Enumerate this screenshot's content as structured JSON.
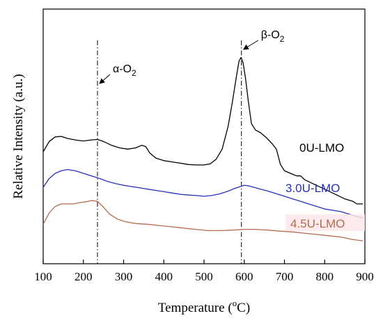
{
  "chart_data": {
    "type": "line",
    "xlabel": "Temperature (",
    "xlabel_sup": "o",
    "xlabel_end": "C)",
    "ylabel": "Relative Intensity (a.u.)",
    "xlim": [
      100,
      900
    ],
    "ylim": [
      0,
      100
    ],
    "x_ticks": [
      100,
      200,
      300,
      400,
      500,
      600,
      700,
      800,
      900
    ],
    "y_ticks_labeled": false,
    "grid": false,
    "series": [
      {
        "name": "0U-LMO",
        "color": "#000000",
        "points": [
          [
            100,
            44
          ],
          [
            115,
            48
          ],
          [
            130,
            49.8
          ],
          [
            145,
            50
          ],
          [
            160,
            49.2
          ],
          [
            180,
            48.6
          ],
          [
            200,
            48.2
          ],
          [
            220,
            48.6
          ],
          [
            235,
            48.8
          ],
          [
            250,
            48
          ],
          [
            270,
            46.5
          ],
          [
            290,
            45.5
          ],
          [
            310,
            45
          ],
          [
            330,
            45.5
          ],
          [
            345,
            46.5
          ],
          [
            355,
            46
          ],
          [
            365,
            43.5
          ],
          [
            380,
            41.5
          ],
          [
            400,
            40.5
          ],
          [
            420,
            40
          ],
          [
            440,
            39.5
          ],
          [
            460,
            39
          ],
          [
            480,
            38.8
          ],
          [
            500,
            38.8
          ],
          [
            515,
            39.2
          ],
          [
            530,
            41
          ],
          [
            545,
            45
          ],
          [
            560,
            54
          ],
          [
            570,
            63
          ],
          [
            580,
            73
          ],
          [
            587,
            79.5
          ],
          [
            592,
            81
          ],
          [
            597,
            79
          ],
          [
            603,
            73
          ],
          [
            610,
            64
          ],
          [
            618,
            55
          ],
          [
            628,
            52.5
          ],
          [
            640,
            51.5
          ],
          [
            655,
            49.5
          ],
          [
            670,
            47
          ],
          [
            680,
            45
          ],
          [
            690,
            39
          ],
          [
            700,
            36.5
          ],
          [
            715,
            35.5
          ],
          [
            730,
            34.5
          ],
          [
            740,
            34.5
          ],
          [
            750,
            33
          ],
          [
            770,
            31.5
          ],
          [
            790,
            30
          ],
          [
            810,
            28.5
          ],
          [
            830,
            27
          ],
          [
            850,
            25.5
          ],
          [
            870,
            24.5
          ],
          [
            880,
            23.5
          ],
          [
            895,
            23.5
          ]
        ]
      },
      {
        "name": "3.0U-LMO",
        "color": "#2431b8",
        "points": [
          [
            100,
            30
          ],
          [
            115,
            33.5
          ],
          [
            130,
            35.5
          ],
          [
            145,
            36.5
          ],
          [
            160,
            37
          ],
          [
            180,
            36.5
          ],
          [
            200,
            35.5
          ],
          [
            220,
            34.5
          ],
          [
            240,
            33.5
          ],
          [
            260,
            32.3
          ],
          [
            280,
            31.5
          ],
          [
            300,
            30.8
          ],
          [
            320,
            30.3
          ],
          [
            340,
            29.8
          ],
          [
            360,
            29.3
          ],
          [
            380,
            28.8
          ],
          [
            400,
            28.3
          ],
          [
            420,
            27.8
          ],
          [
            440,
            27.3
          ],
          [
            460,
            27
          ],
          [
            480,
            26.8
          ],
          [
            500,
            26.5
          ],
          [
            520,
            26.8
          ],
          [
            540,
            27.5
          ],
          [
            560,
            28.5
          ],
          [
            575,
            29.5
          ],
          [
            590,
            30.3
          ],
          [
            600,
            30.8
          ],
          [
            610,
            30.6
          ],
          [
            625,
            30
          ],
          [
            640,
            29.3
          ],
          [
            660,
            28.5
          ],
          [
            680,
            27.5
          ],
          [
            700,
            26.5
          ],
          [
            720,
            25.5
          ],
          [
            740,
            24.5
          ],
          [
            760,
            23.5
          ],
          [
            780,
            22.5
          ],
          [
            800,
            21.5
          ],
          [
            820,
            21
          ],
          [
            840,
            20.5
          ],
          [
            860,
            19.5
          ],
          [
            880,
            18.5
          ],
          [
            895,
            18
          ]
        ]
      },
      {
        "name": "4.5U-LMO",
        "color": "#b86a4d",
        "points": [
          [
            100,
            15.5
          ],
          [
            115,
            20
          ],
          [
            130,
            22.5
          ],
          [
            145,
            23.5
          ],
          [
            160,
            23.5
          ],
          [
            175,
            23.5
          ],
          [
            190,
            24
          ],
          [
            205,
            24.3
          ],
          [
            220,
            24.8
          ],
          [
            235,
            24.5
          ],
          [
            248,
            22.5
          ],
          [
            265,
            19.5
          ],
          [
            285,
            17.5
          ],
          [
            305,
            16.5
          ],
          [
            330,
            15.8
          ],
          [
            360,
            15.5
          ],
          [
            390,
            15
          ],
          [
            420,
            14.5
          ],
          [
            450,
            14
          ],
          [
            480,
            13.5
          ],
          [
            510,
            13
          ],
          [
            540,
            13
          ],
          [
            570,
            13.2
          ],
          [
            600,
            13.5
          ],
          [
            630,
            13.5
          ],
          [
            660,
            13.2
          ],
          [
            690,
            12.8
          ],
          [
            720,
            12.5
          ],
          [
            750,
            12
          ],
          [
            780,
            11.5
          ],
          [
            810,
            11
          ],
          [
            840,
            10.5
          ],
          [
            870,
            9.5
          ],
          [
            895,
            9
          ]
        ]
      }
    ],
    "series_labels": [
      "0U-LMO",
      "3.0U-LMO",
      "4.5U-LMO"
    ],
    "annotations": [
      {
        "label_base": "α-O",
        "label_sub": "2",
        "x": 235
      },
      {
        "label_base": "β-O",
        "label_sub": "2",
        "x": 593
      }
    ]
  }
}
